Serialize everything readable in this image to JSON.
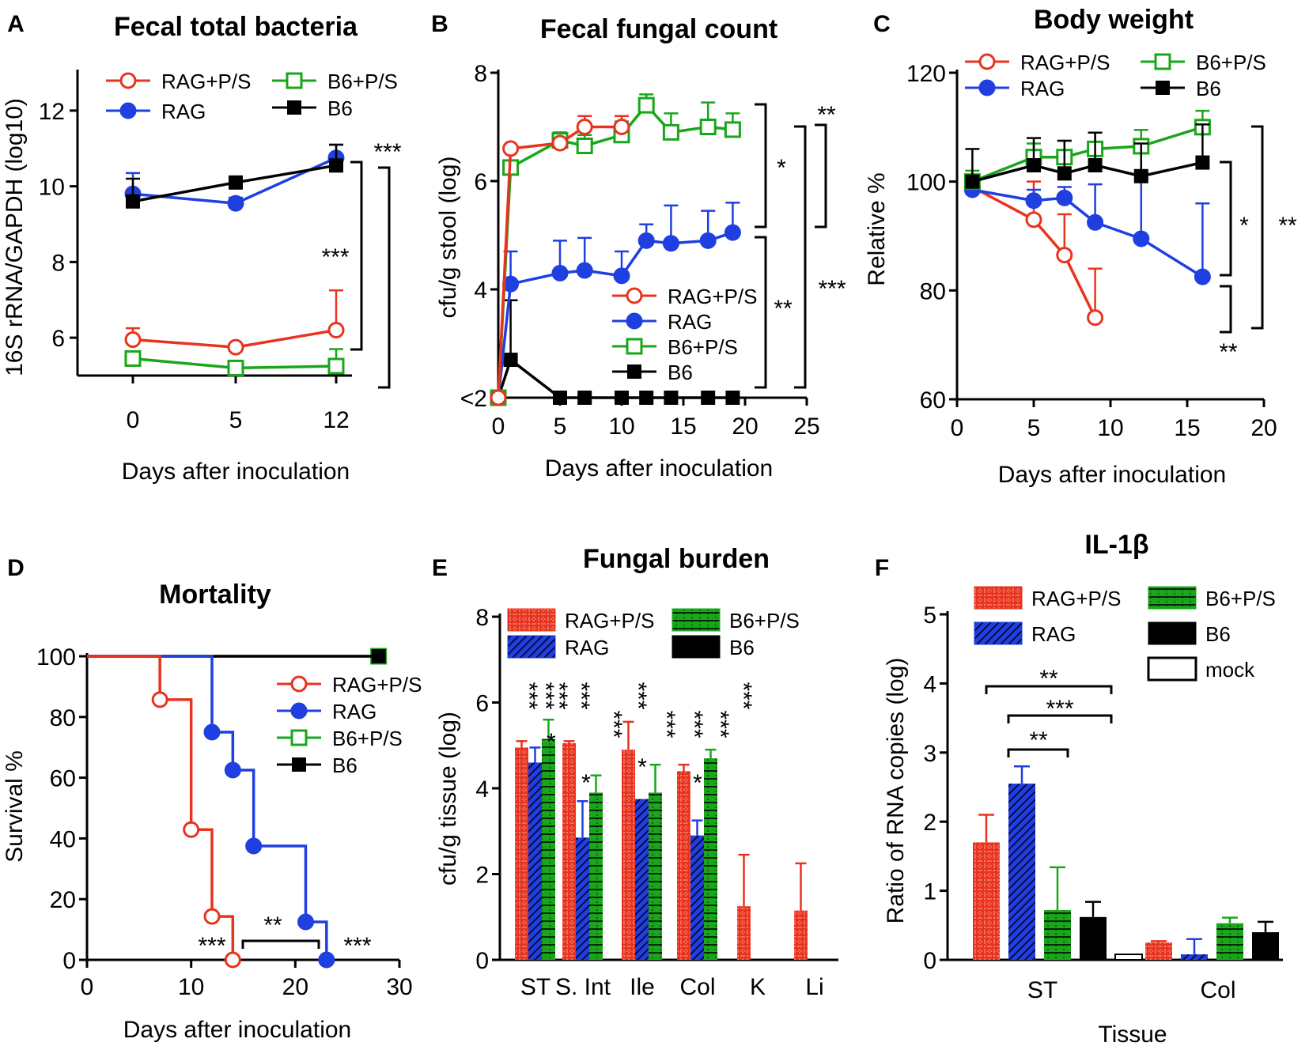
{
  "colors": {
    "rag_ps": "#e8331f",
    "rag": "#1f3fe0",
    "b6_ps": "#1aa61a",
    "b6": "#000000",
    "mock": "#ffffff"
  },
  "chart_data": [
    {
      "id": "A",
      "type": "line",
      "panel_label": "A",
      "title": "Fecal total bacteria",
      "xlabel": "Days after inoculation",
      "ylabel": "16S rRNA/GAPDH (log10)",
      "categories": [
        "0",
        "5",
        "12"
      ],
      "ylim": [
        5,
        13
      ],
      "yticks": [
        "6",
        "8",
        "10",
        "12"
      ],
      "series": [
        {
          "name": "RAG+P/S",
          "values": [
            5.95,
            5.75,
            6.2
          ],
          "err": [
            0.3,
            0.05,
            1.05
          ]
        },
        {
          "name": "RAG",
          "values": [
            9.8,
            9.55,
            10.75
          ],
          "err": [
            0.55,
            0.15,
            0.35
          ]
        },
        {
          "name": "B6+P/S",
          "values": [
            5.45,
            5.2,
            5.25
          ],
          "err": [
            0.1,
            0.15,
            0.45
          ]
        },
        {
          "name": "B6",
          "values": [
            9.6,
            10.1,
            10.55
          ],
          "err": [
            0.6,
            0.1,
            0.55
          ]
        }
      ],
      "annotations": [
        "***",
        "***"
      ]
    },
    {
      "id": "B",
      "type": "line",
      "panel_label": "B",
      "title": "Fecal fungal count",
      "xlabel": "Days after inoculation",
      "ylabel": "cfu/g stool (log)",
      "xlim": [
        0,
        25
      ],
      "xticks": [
        "0",
        "5",
        "10",
        "15",
        "20",
        "25"
      ],
      "ylim": [
        2,
        8
      ],
      "yticks": [
        "<2",
        "4",
        "6",
        "8"
      ],
      "series": [
        {
          "name": "RAG+P/S",
          "x": [
            0,
            1,
            5,
            7,
            10
          ],
          "values": [
            2.0,
            6.6,
            6.7,
            7.0,
            7.0
          ],
          "err": [
            0,
            0,
            0,
            0.2,
            0.2
          ]
        },
        {
          "name": "RAG",
          "x": [
            0,
            1,
            5,
            7,
            10,
            12,
            14,
            17,
            19
          ],
          "values": [
            2.0,
            4.1,
            4.3,
            4.35,
            4.25,
            4.9,
            4.85,
            4.9,
            5.05
          ],
          "err": [
            0,
            0.6,
            0.6,
            0.6,
            0.45,
            0.3,
            0.7,
            0.55,
            0.55
          ]
        },
        {
          "name": "B6+P/S",
          "x": [
            0,
            1,
            5,
            7,
            10,
            12,
            14,
            17,
            19
          ],
          "values": [
            2.0,
            6.25,
            6.75,
            6.65,
            6.85,
            7.4,
            6.9,
            7.0,
            6.95
          ],
          "err": [
            0,
            0,
            0.15,
            0.2,
            0.25,
            0.2,
            0.35,
            0.45,
            0.3
          ]
        },
        {
          "name": "B6",
          "x": [
            0,
            1,
            5,
            7,
            10,
            12,
            14,
            17,
            19
          ],
          "values": [
            2.0,
            2.7,
            2.0,
            2.0,
            2.0,
            2.0,
            2.0,
            2.0,
            2.0
          ],
          "err": [
            0,
            1.1,
            0,
            0,
            0,
            0,
            0,
            0,
            0
          ]
        }
      ],
      "annotations": [
        "**",
        "*",
        "**",
        "***"
      ]
    },
    {
      "id": "C",
      "type": "line",
      "panel_label": "C",
      "title": "Body weight",
      "xlabel": "Days after inoculation",
      "ylabel": "Relative %",
      "xlim": [
        0,
        20
      ],
      "xticks": [
        "0",
        "5",
        "10",
        "15",
        "20"
      ],
      "ylim": [
        60,
        120
      ],
      "yticks": [
        "60",
        "80",
        "100",
        "120"
      ],
      "series": [
        {
          "name": "RAG+P/S",
          "x": [
            1,
            5,
            7,
            9
          ],
          "values": [
            99,
            93,
            86.5,
            75
          ],
          "err": [
            0,
            7,
            7.5,
            9
          ]
        },
        {
          "name": "RAG",
          "x": [
            1,
            5,
            7,
            9,
            12,
            16
          ],
          "values": [
            98.5,
            96.5,
            97,
            92.5,
            89.5,
            82.5
          ],
          "err": [
            0,
            2,
            2,
            7,
            11,
            13.5
          ]
        },
        {
          "name": "B6+P/S",
          "x": [
            1,
            5,
            7,
            9,
            12,
            16
          ],
          "values": [
            100,
            104.5,
            104.5,
            106,
            106.5,
            110
          ],
          "err": [
            2,
            2.5,
            3,
            3,
            3,
            3
          ]
        },
        {
          "name": "B6",
          "x": [
            1,
            5,
            7,
            9,
            12,
            16
          ],
          "values": [
            100,
            103,
            101.5,
            103,
            101,
            103.5
          ],
          "err": [
            6,
            5,
            6,
            6,
            6,
            7
          ]
        }
      ],
      "annotations": [
        "*",
        "**",
        "**"
      ]
    },
    {
      "id": "D",
      "type": "line",
      "panel_label": "D",
      "title": "Mortality",
      "xlabel": "Days after inoculation",
      "ylabel": "Survival %",
      "xlim": [
        0,
        30
      ],
      "xticks": [
        "0",
        "10",
        "20",
        "30"
      ],
      "ylim": [
        0,
        100
      ],
      "yticks": [
        "0",
        "20",
        "40",
        "60",
        "80",
        "100"
      ],
      "series": [
        {
          "name": "RAG+P/S",
          "step_x": [
            0,
            7,
            10,
            12,
            14
          ],
          "step_y": [
            100,
            85.7,
            42.9,
            14.3,
            0
          ],
          "marker_x": [
            7,
            10,
            12,
            14
          ],
          "marker_y": [
            85.7,
            42.9,
            14.3,
            0
          ]
        },
        {
          "name": "RAG",
          "step_x": [
            0,
            12,
            14,
            16,
            21,
            23
          ],
          "step_y": [
            100,
            75,
            62.5,
            37.5,
            12.5,
            0
          ],
          "marker_x": [
            12,
            14,
            16,
            21,
            23
          ],
          "marker_y": [
            75,
            62.5,
            37.5,
            12.5,
            0
          ]
        },
        {
          "name": "B6+P/S",
          "step_x": [
            0,
            28
          ],
          "step_y": [
            100,
            100
          ],
          "marker_x": [
            28
          ],
          "marker_y": [
            100
          ]
        },
        {
          "name": "B6",
          "step_x": [
            0,
            28
          ],
          "step_y": [
            100,
            100
          ],
          "marker_x": [
            28
          ],
          "marker_y": [
            100
          ]
        }
      ],
      "annotations": [
        "***",
        "**",
        "***"
      ]
    },
    {
      "id": "E",
      "type": "bar",
      "panel_label": "E",
      "title": "Fungal burden",
      "xlabel": "",
      "ylabel": "cfu/g tissue (log)",
      "categories": [
        "ST",
        "S. Int",
        "Ile",
        "Col",
        "K",
        "Li"
      ],
      "ylim": [
        0,
        8
      ],
      "yticks": [
        "0",
        "2",
        "4",
        "6",
        "8"
      ],
      "series": [
        {
          "name": "RAG+P/S",
          "values": [
            4.95,
            5.05,
            4.9,
            4.4,
            1.25,
            1.15
          ],
          "err": [
            0.15,
            0.05,
            0.65,
            0.15,
            1.2,
            1.1
          ]
        },
        {
          "name": "RAG",
          "values": [
            4.6,
            2.85,
            3.75,
            2.9,
            0,
            0
          ],
          "err": [
            0.35,
            0.85,
            0,
            0.35,
            0,
            0
          ]
        },
        {
          "name": "B6+P/S",
          "values": [
            5.15,
            3.9,
            3.9,
            4.7,
            0,
            0
          ],
          "err": [
            0.45,
            0.4,
            0.65,
            0.2,
            0,
            0
          ]
        },
        {
          "name": "B6",
          "values": [
            0,
            0,
            0,
            0,
            0,
            0
          ],
          "err": [
            0,
            0,
            0,
            0,
            0,
            0
          ]
        }
      ],
      "annotations": [
        "***",
        "***",
        "***",
        "***",
        "***",
        "***",
        "***",
        "***",
        "***",
        "***",
        "*",
        "*",
        "*",
        "*"
      ]
    },
    {
      "id": "F",
      "type": "bar",
      "panel_label": "F",
      "title": "IL-1β",
      "xlabel": "Tissue",
      "ylabel": "Ratio of RNA copies (log)",
      "categories": [
        "ST",
        "Col"
      ],
      "ylim": [
        0,
        5
      ],
      "yticks": [
        "0",
        "1",
        "2",
        "3",
        "4",
        "5"
      ],
      "series": [
        {
          "name": "RAG+P/S",
          "values": [
            1.7,
            0.25
          ],
          "err": [
            0.4,
            0.02
          ]
        },
        {
          "name": "RAG",
          "values": [
            2.55,
            0.08
          ],
          "err": [
            0.25,
            0.22
          ]
        },
        {
          "name": "B6+P/S",
          "values": [
            0.72,
            0.53
          ],
          "err": [
            0.62,
            0.08
          ]
        },
        {
          "name": "B6",
          "values": [
            0.62,
            0.4
          ],
          "err": [
            0.22,
            0.15
          ]
        },
        {
          "name": "mock",
          "values": [
            0.08,
            0
          ],
          "err": [
            0,
            0
          ]
        }
      ],
      "annotations": [
        "**",
        "***",
        "**"
      ]
    }
  ]
}
